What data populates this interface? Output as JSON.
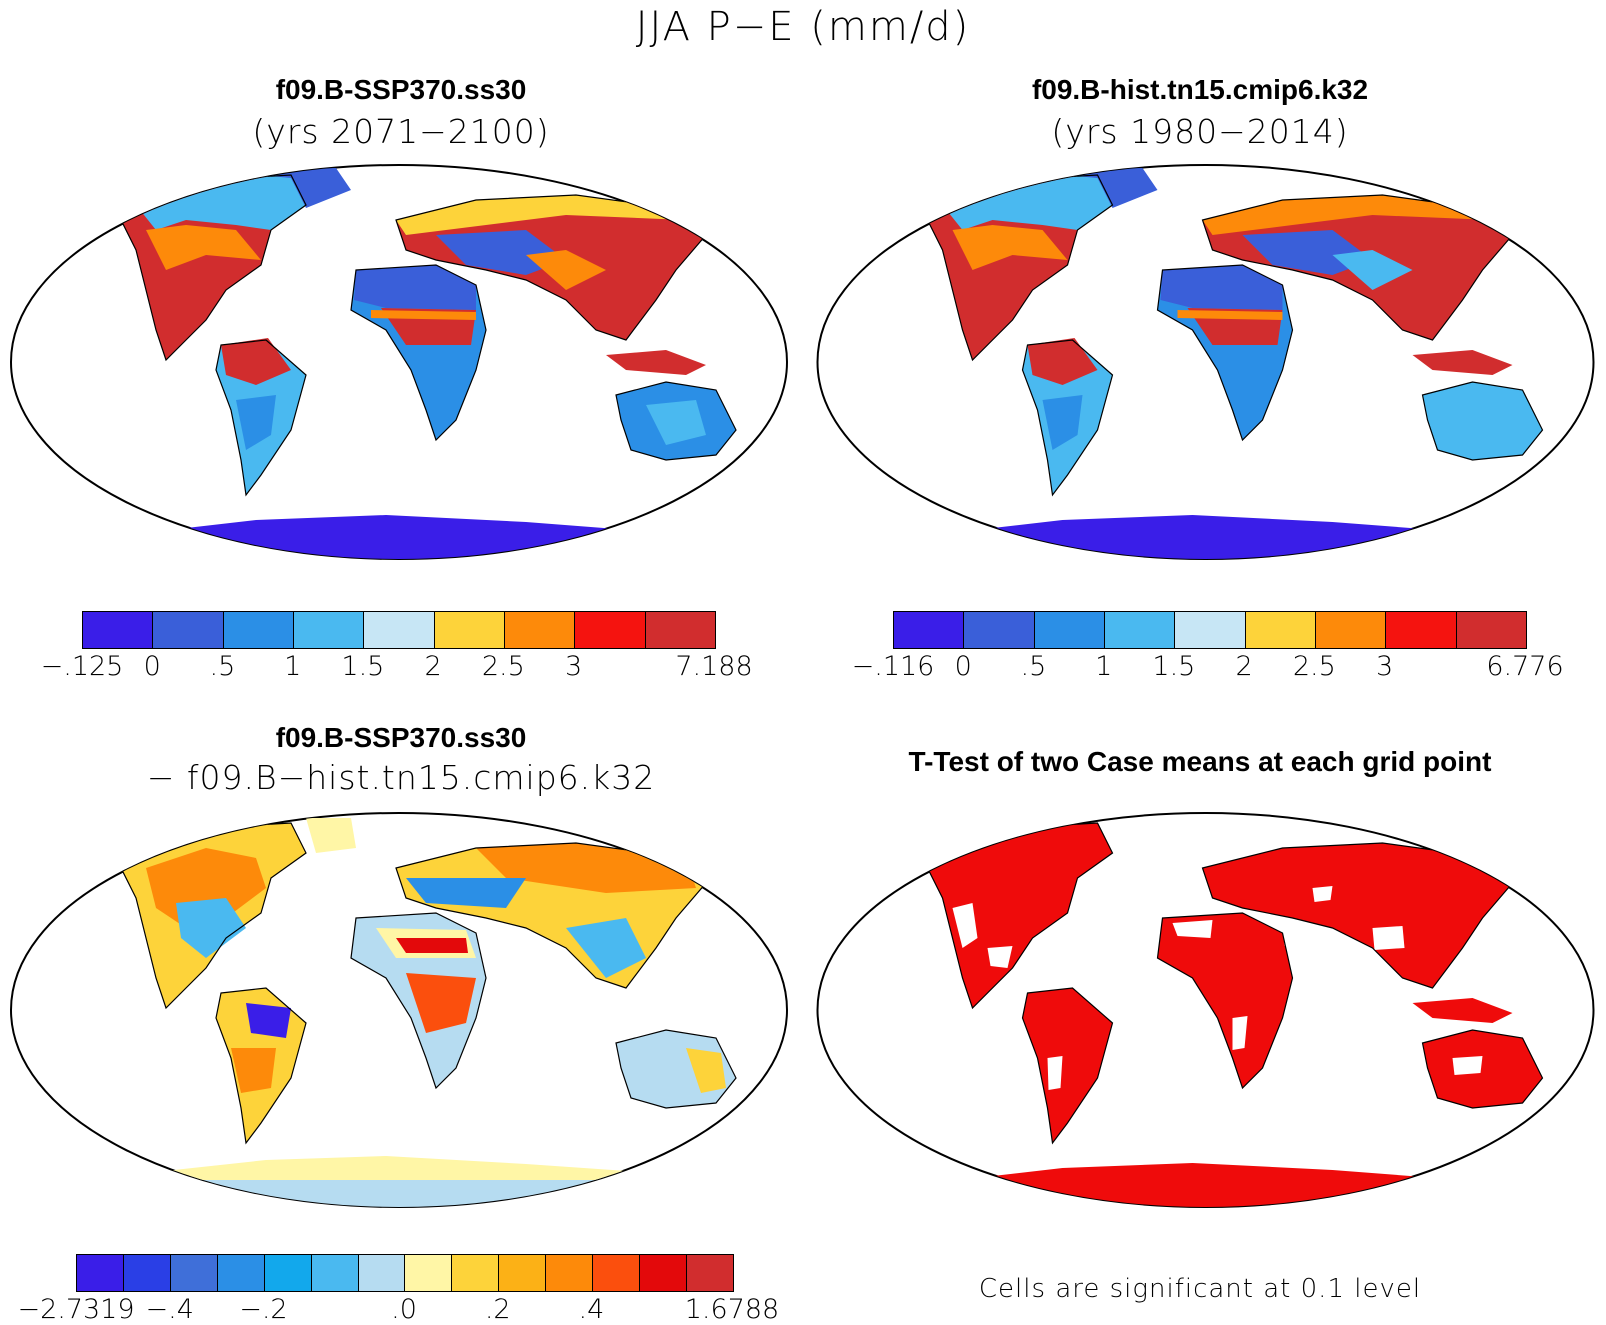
{
  "main_title": "JJA P−E (mm/d)",
  "panels": [
    {
      "id": "case1",
      "title": "f09.B-SSP370.ss30",
      "subtitle": "(yrs 2071−2100)",
      "colorbar": {
        "colors": [
          "#3a1ee8",
          "#3a5fd9",
          "#2b8fe6",
          "#4ab9f0",
          "#c7e6f5",
          "#fdd33a",
          "#fd8a0a",
          "#f5130f",
          "#d12d2e"
        ],
        "labels": [
          "−.125",
          "0",
          ".5",
          "1",
          "1.5",
          "2",
          "2.5",
          "3",
          "7.188"
        ]
      }
    },
    {
      "id": "case2",
      "title": "f09.B-hist.tn15.cmip6.k32",
      "subtitle": "(yrs 1980−2014)",
      "colorbar": {
        "colors": [
          "#3a1ee8",
          "#3a5fd9",
          "#2b8fe6",
          "#4ab9f0",
          "#c7e6f5",
          "#fdd33a",
          "#fd8a0a",
          "#f5130f",
          "#d12d2e"
        ],
        "labels": [
          "−.116",
          "0",
          ".5",
          "1",
          "1.5",
          "2",
          "2.5",
          "3",
          "6.776"
        ]
      }
    },
    {
      "id": "diff",
      "title": "f09.B-SSP370.ss30",
      "subtitle": "− f09.B−hist.tn15.cmip6.k32",
      "colorbar": {
        "colors": [
          "#3a1ee8",
          "#2a3fe6",
          "#3f6fd9",
          "#2b8fe6",
          "#12a8ec",
          "#4ab9f0",
          "#b6dcf1",
          "#fff6a6",
          "#fdd33a",
          "#fcb116",
          "#fd8a0a",
          "#fb4f0d",
          "#e3090b",
          "#d12d2e"
        ],
        "labels": [
          "−2.7319",
          "−.4",
          "−.2",
          ".0",
          ".2",
          ".4",
          "1.6788"
        ]
      }
    },
    {
      "id": "ttest",
      "title": "T-Test of two Case means at each grid point",
      "footnote": "Cells are significant at 0.1 level",
      "color": "#ef0b0b"
    }
  ]
}
